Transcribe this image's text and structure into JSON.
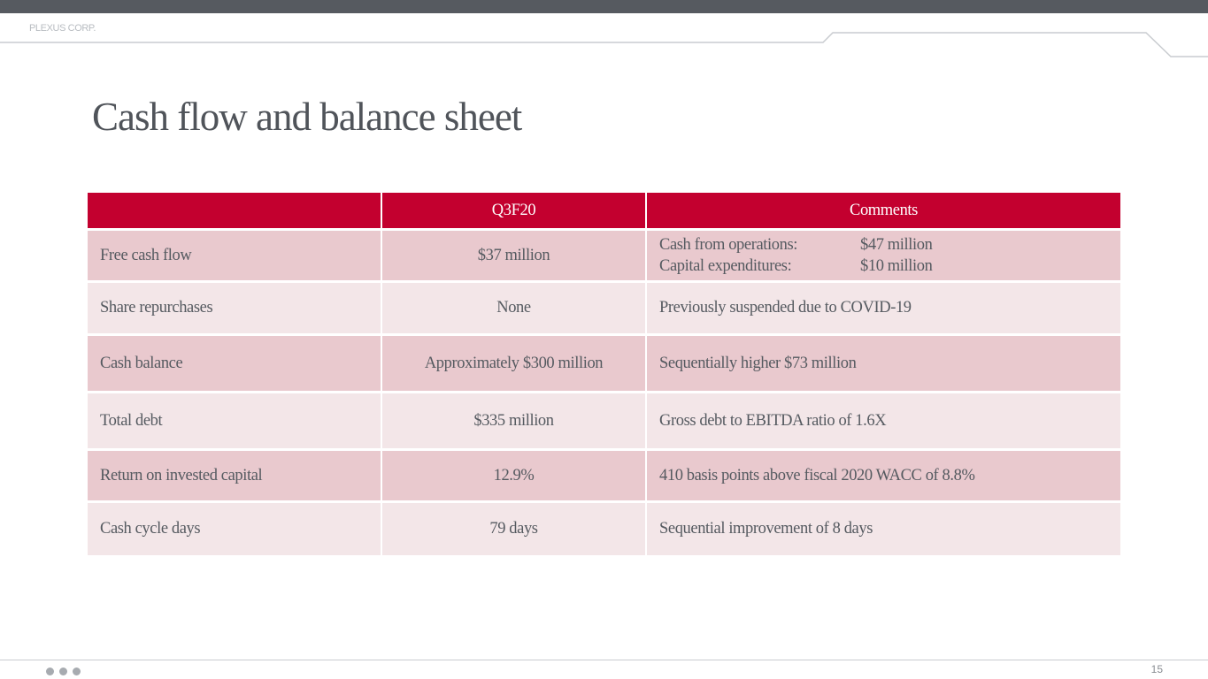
{
  "header": {
    "brand": "PLEXUS CORP."
  },
  "slide": {
    "title": "Cash flow and balance sheet",
    "page_number": "15"
  },
  "table": {
    "columns": [
      "",
      "Q3F20",
      "Comments"
    ],
    "rows": [
      {
        "label": "Free cash flow",
        "value": "$37 million",
        "comment_lines": [
          {
            "k": "Cash from operations:",
            "v": "$47 million"
          },
          {
            "k": "Capital expenditures:",
            "v": "$10 million"
          }
        ]
      },
      {
        "label": "Share repurchases",
        "value": "None",
        "comment": "Previously suspended due to COVID-19"
      },
      {
        "label": "Cash balance",
        "value": "Approximately $300 million",
        "comment": "Sequentially higher $73 million"
      },
      {
        "label": "Total debt",
        "value": "$335 million",
        "comment": "Gross debt to EBITDA ratio of 1.6X"
      },
      {
        "label": "Return on invested capital",
        "value": "12.9%",
        "comment": "410 basis points above fiscal 2020 WACC of 8.8%"
      },
      {
        "label": "Cash cycle days",
        "value": "79 days",
        "comment": "Sequential improvement of 8 days"
      }
    ]
  },
  "colors": {
    "header_red": "#c3002f",
    "row_dark": "#e9c9ce",
    "row_light": "#f3e6e8",
    "top_bar": "#565a60"
  }
}
